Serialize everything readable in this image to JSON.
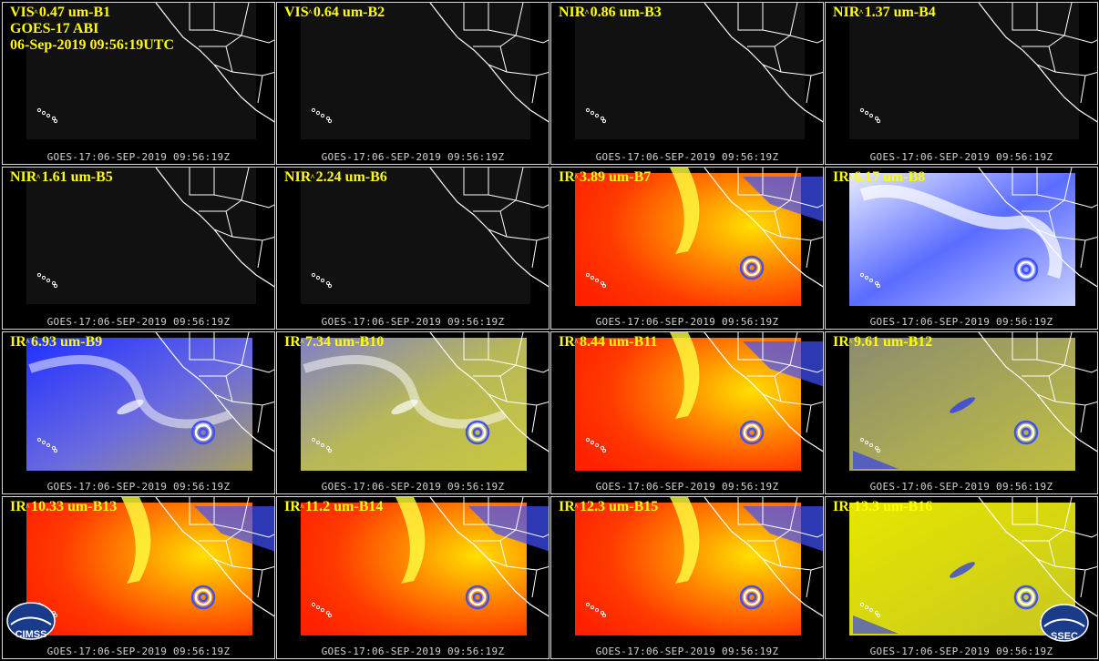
{
  "header": {
    "satellite": "GOES-17 ABI",
    "datetime": "06-Sep-2019 09:56:19UTC"
  },
  "stamp": "GOES-17:06-SEP-2019 09:56:19Z",
  "panels": [
    {
      "type": "VIS",
      "label": "0.47 um-B1",
      "style": "dark"
    },
    {
      "type": "VIS",
      "label": "0.64 um-B2",
      "style": "dark"
    },
    {
      "type": "NIR",
      "label": "0.86 um-B3",
      "style": "dark"
    },
    {
      "type": "NIR",
      "label": "1.37 um-B4",
      "style": "dark"
    },
    {
      "type": "NIR",
      "label": "1.61 um-B5",
      "style": "dark"
    },
    {
      "type": "NIR",
      "label": "2.24 um-B6",
      "style": "dark"
    },
    {
      "type": "IR",
      "label": "3.89 um-B7",
      "style": "hot"
    },
    {
      "type": "IR",
      "label": "6.17 um-B8",
      "style": "wv-light"
    },
    {
      "type": "IR",
      "label": "6.93 um-B9",
      "style": "wv-blue"
    },
    {
      "type": "IR",
      "label": "7.34 um-B10",
      "style": "wv-olive"
    },
    {
      "type": "IR",
      "label": "8.44 um-B11",
      "style": "hot"
    },
    {
      "type": "IR",
      "label": "9.61 um-B12",
      "style": "ozone"
    },
    {
      "type": "IR",
      "label": "10.33 um-B13",
      "style": "hot"
    },
    {
      "type": "IR",
      "label": "11.2 um-B14",
      "style": "hot"
    },
    {
      "type": "IR",
      "label": "12.3 um-B15",
      "style": "hot"
    },
    {
      "type": "IR",
      "label": "13.3 um-B16",
      "style": "co2"
    }
  ],
  "logos": {
    "left": "CIMSS",
    "right": "SSEC"
  },
  "colors": {
    "label": "#ffff00",
    "coast": "#ffffff",
    "hot_low": "#ff2a00",
    "hot_high": "#ffff00",
    "wv_blue": "#1020ff",
    "olive": "#c8c840"
  }
}
